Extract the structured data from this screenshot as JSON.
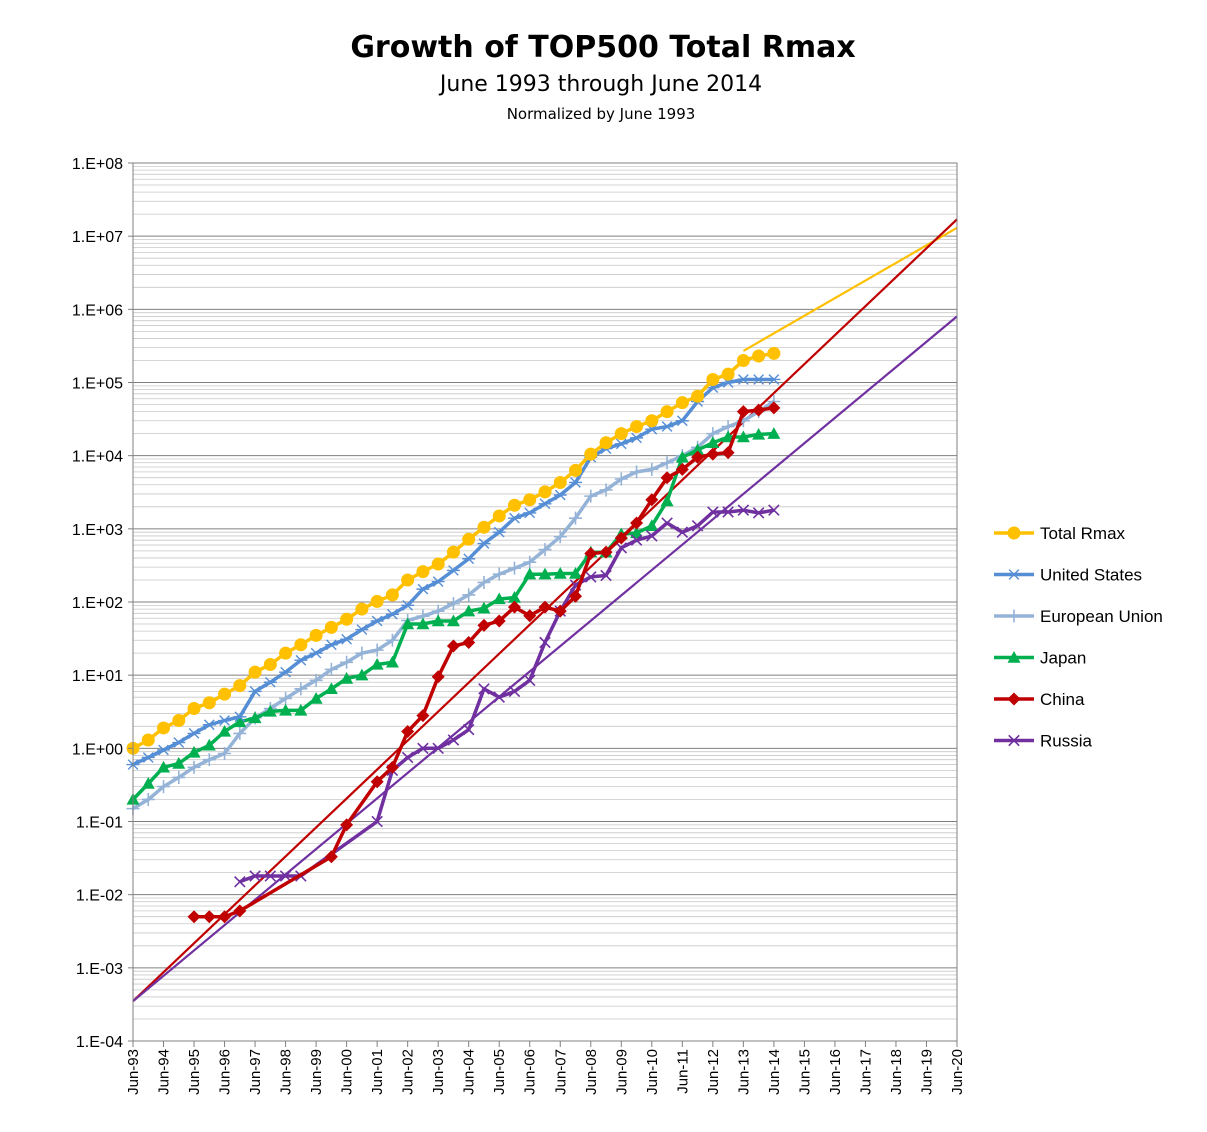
{
  "chart_data": {
    "type": "line",
    "title": "Growth of TOP500 Total Rmax",
    "subtitle": "June 1993 through June 2014",
    "subsubtitle": "Normalized by June 1993",
    "y_scale": "log",
    "ylim": [
      0.0001,
      100000000
    ],
    "y_tick_labels": [
      "1.E-04",
      "1.E-03",
      "1.E-02",
      "1.E-01",
      "1.E+00",
      "1.E+01",
      "1.E+02",
      "1.E+03",
      "1.E+04",
      "1.E+05",
      "1.E+06",
      "1.E+07",
      "1.E+08"
    ],
    "x_tick_labels": [
      "Jun-93",
      "Jun-94",
      "Jun-95",
      "Jun-96",
      "Jun-97",
      "Jun-98",
      "Jun-99",
      "Jun-00",
      "Jun-01",
      "Jun-02",
      "Jun-03",
      "Jun-04",
      "Jun-05",
      "Jun-06",
      "Jun-07",
      "Jun-08",
      "Jun-09",
      "Jun-10",
      "Jun-11",
      "Jun-12",
      "Jun-13",
      "Jun-14",
      "Jun-15",
      "Jun-16",
      "Jun-17",
      "Jun-18",
      "Jun-19",
      "Jun-20"
    ],
    "xlim": [
      1993.5,
      2020.5
    ],
    "grid": true,
    "legend_position": "right",
    "series": [
      {
        "name": "Total Rmax",
        "color": "#FFC000",
        "marker": "circle",
        "x": [
          1993.5,
          1994.0,
          1994.5,
          1995.0,
          1995.5,
          1996.0,
          1996.5,
          1997.0,
          1997.5,
          1998.0,
          1998.5,
          1999.0,
          1999.5,
          2000.0,
          2000.5,
          2001.0,
          2001.5,
          2002.0,
          2002.5,
          2003.0,
          2003.5,
          2004.0,
          2004.5,
          2005.0,
          2005.5,
          2006.0,
          2006.5,
          2007.0,
          2007.5,
          2008.0,
          2008.5,
          2009.0,
          2009.5,
          2010.0,
          2010.5,
          2011.0,
          2011.5,
          2012.0,
          2012.5,
          2013.0,
          2013.5,
          2014.0,
          2014.5
        ],
        "y": [
          1.0,
          1.3,
          1.9,
          2.4,
          3.5,
          4.2,
          5.5,
          7.2,
          11,
          14,
          20,
          26,
          35,
          45,
          58,
          80,
          102,
          125,
          200,
          260,
          330,
          480,
          720,
          1050,
          1500,
          2100,
          2500,
          3200,
          4300,
          6300,
          10500,
          15000,
          20000,
          25000,
          30000,
          40000,
          53000,
          65000,
          110000,
          130000,
          200000,
          230000,
          250000
        ]
      },
      {
        "name": "United States",
        "color": "#558ED5",
        "marker": "asterisk",
        "x": [
          1993.5,
          1994.0,
          1994.5,
          1995.0,
          1995.5,
          1996.0,
          1996.5,
          1997.0,
          1997.5,
          1998.0,
          1998.5,
          1999.0,
          1999.5,
          2000.0,
          2000.5,
          2001.0,
          2001.5,
          2002.0,
          2002.5,
          2003.0,
          2003.5,
          2004.0,
          2004.5,
          2005.0,
          2005.5,
          2006.0,
          2006.5,
          2007.0,
          2007.5,
          2008.0,
          2008.5,
          2009.0,
          2009.5,
          2010.0,
          2010.5,
          2011.0,
          2011.5,
          2012.0,
          2012.5,
          2013.0,
          2013.5,
          2014.0,
          2014.5
        ],
        "y": [
          0.6,
          0.75,
          0.95,
          1.2,
          1.6,
          2.1,
          2.4,
          2.7,
          6,
          8,
          11,
          16,
          20,
          26,
          31,
          42,
          55,
          68,
          90,
          150,
          190,
          270,
          390,
          630,
          900,
          1400,
          1650,
          2200,
          2900,
          4300,
          9500,
          12500,
          14500,
          17500,
          23000,
          25000,
          30000,
          55000,
          85000,
          100000,
          110000,
          110000,
          110000
        ]
      },
      {
        "name": "European Union",
        "color": "#95B3D7",
        "marker": "plus",
        "x": [
          1993.5,
          1994.0,
          1994.5,
          1995.0,
          1995.5,
          1996.0,
          1996.5,
          1997.0,
          1997.5,
          1998.0,
          1998.5,
          1999.0,
          1999.5,
          2000.0,
          2000.5,
          2001.0,
          2001.5,
          2002.0,
          2002.5,
          2003.0,
          2003.5,
          2004.0,
          2004.5,
          2005.0,
          2005.5,
          2006.0,
          2006.5,
          2007.0,
          2007.5,
          2008.0,
          2008.5,
          2009.0,
          2009.5,
          2010.0,
          2010.5,
          2011.0,
          2011.5,
          2012.0,
          2012.5,
          2013.0,
          2013.5,
          2014.0,
          2014.5
        ],
        "y": [
          0.15,
          0.2,
          0.3,
          0.4,
          0.55,
          0.7,
          0.85,
          1.6,
          2.6,
          3.5,
          4.8,
          6.5,
          8.5,
          12,
          15,
          20,
          22,
          30,
          56,
          64,
          75,
          95,
          125,
          185,
          240,
          290,
          350,
          520,
          780,
          1400,
          2800,
          3400,
          4800,
          6000,
          6500,
          8000,
          10000,
          13000,
          20000,
          25000,
          30000,
          40000,
          55000
        ]
      },
      {
        "name": "Japan",
        "color": "#00B050",
        "marker": "triangle",
        "x": [
          1993.5,
          1994.0,
          1994.5,
          1995.0,
          1995.5,
          1996.0,
          1996.5,
          1997.0,
          1997.5,
          1998.0,
          1998.5,
          1999.0,
          1999.5,
          2000.0,
          2000.5,
          2001.0,
          2001.5,
          2002.0,
          2002.5,
          2003.0,
          2003.5,
          2004.0,
          2004.5,
          2005.0,
          2005.5,
          2006.0,
          2006.5,
          2007.0,
          2007.5,
          2008.0,
          2008.5,
          2009.0,
          2009.5,
          2010.0,
          2010.5,
          2011.0,
          2011.5,
          2012.0,
          2012.5,
          2013.0,
          2013.5,
          2014.0,
          2014.5
        ],
        "y": [
          0.2,
          0.33,
          0.55,
          0.62,
          0.88,
          1.1,
          1.7,
          2.3,
          2.6,
          3.2,
          3.3,
          3.3,
          4.8,
          6.5,
          9,
          10,
          14,
          15,
          50,
          50,
          55,
          55,
          75,
          82,
          110,
          115,
          240,
          240,
          245,
          245,
          480,
          480,
          850,
          880,
          1100,
          2400,
          9500,
          12000,
          15000,
          18000,
          18000,
          19500,
          20000
        ]
      },
      {
        "name": "China",
        "color": "#C00000",
        "marker": "diamond",
        "x": [
          1995.5,
          1996.0,
          1996.5,
          1997.0,
          2000.0,
          2000.5,
          2001.5,
          2002.0,
          2002.5,
          2003.0,
          2003.5,
          2004.0,
          2004.5,
          2005.0,
          2005.5,
          2006.0,
          2006.5,
          2007.0,
          2007.5,
          2008.0,
          2008.5,
          2009.0,
          2009.5,
          2010.0,
          2010.5,
          2011.0,
          2011.5,
          2012.0,
          2012.5,
          2013.0,
          2013.5,
          2014.0,
          2014.5
        ],
        "y": [
          0.005,
          0.005,
          0.005,
          0.006,
          0.033,
          0.09,
          0.35,
          0.55,
          1.7,
          2.8,
          9.5,
          25,
          28,
          48,
          55,
          85,
          65,
          85,
          75,
          120,
          460,
          480,
          750,
          1200,
          2500,
          5000,
          6500,
          9500,
          10500,
          11000,
          40000,
          42000,
          45000
        ]
      },
      {
        "name": "Russia",
        "color": "#7030A0",
        "marker": "x",
        "x": [
          1997.0,
          1997.5,
          1998.0,
          1998.5,
          1999.0,
          2001.5,
          2002.0,
          2002.5,
          2003.0,
          2003.5,
          2004.0,
          2004.5,
          2005.0,
          2005.5,
          2006.0,
          2006.5,
          2007.0,
          2007.5,
          2008.0,
          2008.5,
          2009.0,
          2009.5,
          2010.0,
          2010.5,
          2011.0,
          2011.5,
          2012.0,
          2012.5,
          2013.0,
          2013.5,
          2014.0,
          2014.5
        ],
        "y": [
          0.015,
          0.018,
          0.018,
          0.018,
          0.018,
          0.1,
          0.5,
          0.75,
          1.0,
          1.0,
          1.3,
          1.8,
          6.5,
          5,
          6,
          8.5,
          28,
          75,
          170,
          220,
          230,
          550,
          700,
          800,
          1200,
          900,
          1100,
          1700,
          1700,
          1800,
          1650,
          1800
        ]
      }
    ],
    "trendlines": [
      {
        "color": "#FFC000",
        "x": [
          2013.5,
          2020.5
        ],
        "y": [
          270000,
          13000000
        ]
      },
      {
        "color": "#C00000",
        "x": [
          1993.5,
          2020.5
        ],
        "y": [
          0.00035,
          17000000
        ]
      },
      {
        "color": "#7030A0",
        "x": [
          1993.5,
          2020.5
        ],
        "y": [
          0.00035,
          800000
        ]
      }
    ]
  }
}
